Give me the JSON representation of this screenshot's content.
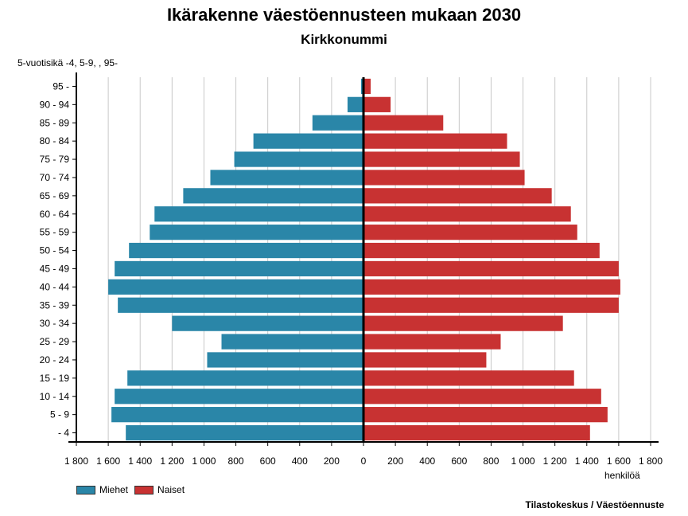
{
  "chart_data": {
    "type": "bar",
    "orientation": "horizontal",
    "title": "Ikärakenne väestöennusteen mukaan 2030",
    "subtitle": "Kirkkonummi",
    "ylabel": "5-vuotisikä -4, 5-9, , 95-",
    "xlabel": "henkilöä",
    "source": "Tilastokeskus / Väestöennuste",
    "categories": [
      "- 4",
      "5 - 9",
      "10 - 14",
      "15 - 19",
      "20 - 24",
      "25 - 29",
      "30 - 34",
      "35 - 39",
      "40 - 44",
      "45 - 49",
      "50 - 54",
      "55 - 59",
      "60 - 64",
      "65 - 69",
      "70 - 74",
      "75 - 79",
      "80 - 84",
      "85 - 89",
      "90 - 94",
      "95 -"
    ],
    "series": [
      {
        "name": "Miehet",
        "color": "#2a86a8",
        "values": [
          1490,
          1580,
          1560,
          1480,
          980,
          890,
          1200,
          1540,
          1600,
          1560,
          1470,
          1340,
          1310,
          1130,
          960,
          810,
          690,
          320,
          100,
          15
        ]
      },
      {
        "name": "Naiset",
        "color": "#c83232",
        "values": [
          1420,
          1530,
          1490,
          1320,
          770,
          860,
          1250,
          1600,
          1610,
          1600,
          1480,
          1340,
          1300,
          1180,
          1010,
          980,
          900,
          500,
          170,
          45
        ]
      }
    ],
    "xlim": [
      -1800,
      1800
    ],
    "xticks": [
      -1800,
      -1600,
      -1400,
      -1200,
      -1000,
      -800,
      -600,
      -400,
      -200,
      0,
      200,
      400,
      600,
      800,
      1000,
      1200,
      1400,
      1600,
      1800
    ],
    "xtick_labels": [
      "1 800",
      "1 600",
      "1 400",
      "1 200",
      "1 000",
      "800",
      "600",
      "400",
      "200",
      "0",
      "200",
      "400",
      "600",
      "800",
      "1 000",
      "1 200",
      "1 400",
      "1 600",
      "1 800"
    ],
    "grid": true,
    "legend_position": "bottom-left"
  }
}
